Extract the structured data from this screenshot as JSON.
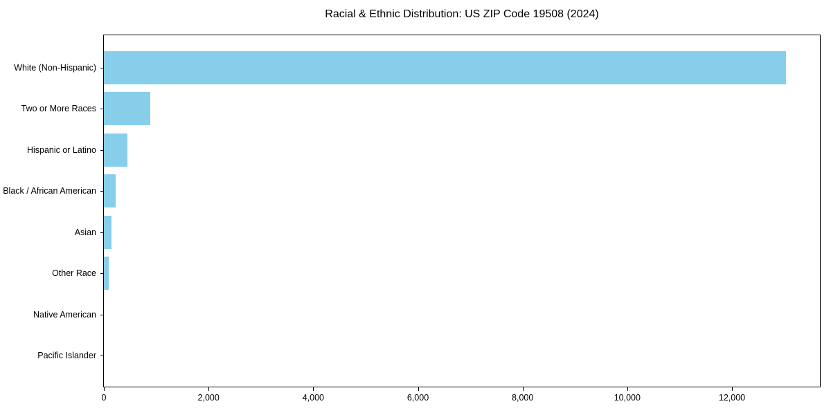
{
  "chart_data": {
    "type": "bar",
    "orientation": "horizontal",
    "title": "Racial & Ethnic Distribution: US ZIP Code 19508 (2024)",
    "categories": [
      "White (Non-Hispanic)",
      "Two or More Races",
      "Hispanic or Latino",
      "Black / African American",
      "Asian",
      "Other Race",
      "Native American",
      "Pacific Islander"
    ],
    "values": [
      13030,
      880,
      445,
      225,
      140,
      98,
      0,
      0
    ],
    "xlabel": "",
    "ylabel": "",
    "xlim": [
      0,
      13680
    ],
    "x_tick_values": [
      0,
      2000,
      4000,
      6000,
      8000,
      10000,
      12000
    ],
    "x_tick_labels": [
      "0",
      "2,000",
      "4,000",
      "6,000",
      "8,000",
      "10,000",
      "12,000"
    ],
    "grid": false,
    "legend": null,
    "bar_color": "#87CEEB",
    "axis_color": "#000000",
    "background_color": "#ffffff"
  }
}
